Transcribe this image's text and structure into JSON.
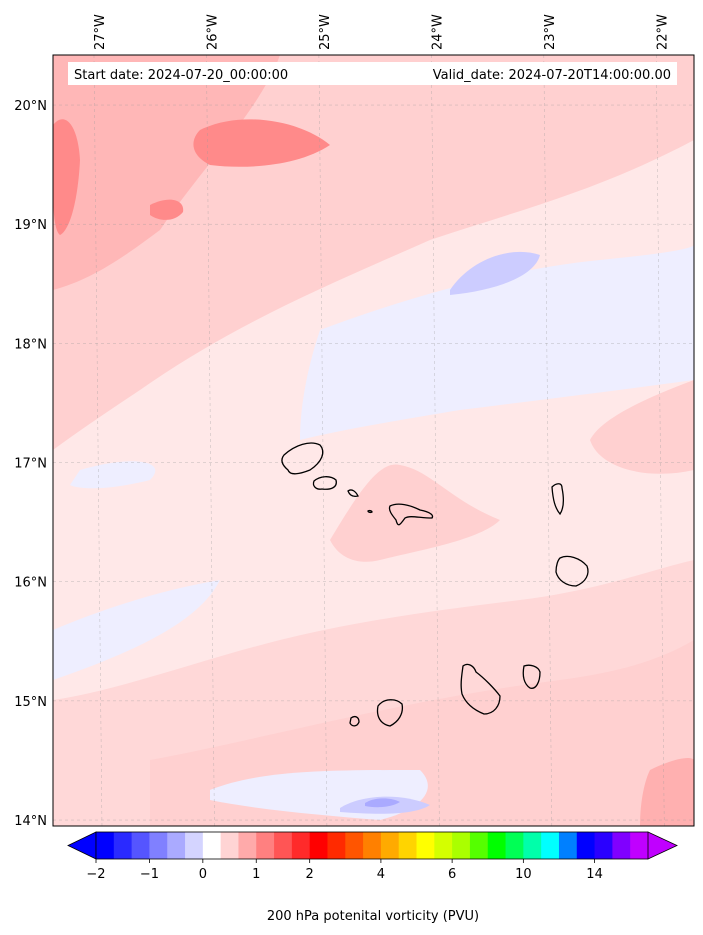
{
  "map": {
    "start_date": "Start date: 2024-07-20_00:00:00",
    "valid_date": "Valid_date: 2024-07-20T14:00:00.00",
    "lon_labels": [
      {
        "text": "27°W",
        "lon": -27
      },
      {
        "text": "26°W",
        "lon": -26
      },
      {
        "text": "25°W",
        "lon": -25
      },
      {
        "text": "24°W",
        "lon": -24
      },
      {
        "text": "23°W",
        "lon": -23
      },
      {
        "text": "22°W",
        "lon": -22
      }
    ],
    "lat_labels": [
      {
        "text": "20°N",
        "lat": 20
      },
      {
        "text": "19°N",
        "lat": 19
      },
      {
        "text": "18°N",
        "lat": 18
      },
      {
        "text": "17°N",
        "lat": 17
      },
      {
        "text": "16°N",
        "lat": 16
      },
      {
        "text": "15°N",
        "lat": 15
      },
      {
        "text": "14°N",
        "lat": 14
      }
    ],
    "extent": {
      "lon_min": -27.4,
      "lon_max": -21.7,
      "lat_min": 13.95,
      "lat_max": 20.42
    }
  },
  "colorbar": {
    "label": "200 hPa potenital vorticity (PVU)",
    "tick_labels": [
      "−2",
      "−1",
      "0",
      "1",
      "2",
      "4",
      "6",
      "10",
      "14"
    ],
    "colors": [
      "#0000ff",
      "#2a2aff",
      "#5555ff",
      "#8080ff",
      "#aaaaff",
      "#d4d4ff",
      "#ffffff",
      "#ffd4d4",
      "#ffaaaa",
      "#ff8080",
      "#ff5555",
      "#ff2a2a",
      "#ff0000",
      "#ff2a00",
      "#ff5500",
      "#ff8000",
      "#ffaa00",
      "#ffd400",
      "#ffff00",
      "#d4ff00",
      "#aaff00",
      "#55ff00",
      "#00ff00",
      "#00ff55",
      "#00ffaa",
      "#00ffff",
      "#0080ff",
      "#0000ff",
      "#2a00ff",
      "#8000ff",
      "#c000ff"
    ],
    "under_color": "#0000ff",
    "over_color": "#c000ff"
  },
  "fill_colors": {
    "background": "#ffe8e8",
    "faint": "#ffd0d0",
    "medium": "#ffb0b0",
    "strong": "#ff8a8a",
    "blue_faint": "#eeeeff",
    "blue_medium": "#ccccff",
    "blue_strong": "#aaaaff"
  }
}
